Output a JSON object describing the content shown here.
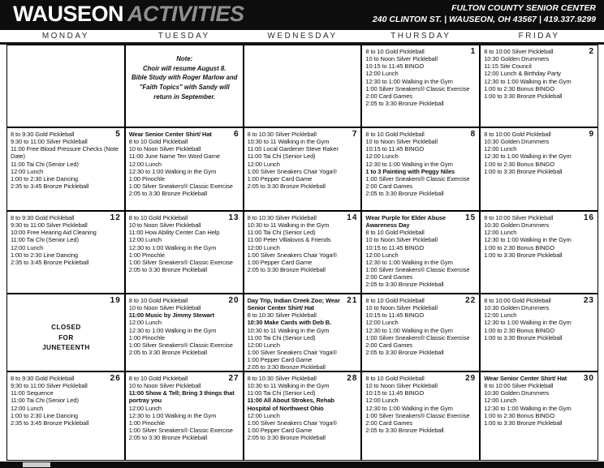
{
  "header": {
    "title_main": "WAUSEON",
    "title_accent": "ACTIVITIES",
    "org_name": "FULTON COUNTY SENIOR CENTER",
    "address_line": "240 CLINTON ST.  |  WAUSEON, OH 43567  |  419.337.9299"
  },
  "day_headers": [
    "MONDAY",
    "TUESDAY",
    "WEDNESDAY",
    "THURSDAY",
    "FRIDAY"
  ],
  "weeks": [
    [
      {
        "date": null
      },
      {
        "date": null,
        "note_lines": [
          "Note:",
          "Choir will resume August 8.",
          "Bible Study with Roger Marlow and",
          "\"Faith Topics\" with Sandy will",
          "return in September."
        ]
      },
      {
        "date": null
      },
      {
        "date": "1",
        "events": [
          {
            "text": "8 to 10 Gold Pickleball",
            "bold": false
          },
          {
            "text": "10 to Noon Silver Pickleball",
            "bold": false
          },
          {
            "text": "10:15 to 11:45 BINGO",
            "bold": false
          },
          {
            "text": "12:00 Lunch",
            "bold": false
          },
          {
            "text": "12:30 to 1:00 Walking in the Gym",
            "bold": false
          },
          {
            "text": "1:00 Silver Sneakers® Classic Exercise",
            "bold": false
          },
          {
            "text": "2:00 Card Games",
            "bold": false
          },
          {
            "text": "2:05 to 3:30 Bronze Pickleball",
            "bold": false
          }
        ]
      },
      {
        "date": "2",
        "events": [
          {
            "text": "8 to 10:00 Silver Pickleball",
            "bold": false
          },
          {
            "text": "10:30 Golden Drummers",
            "bold": false
          },
          {
            "text": "11:15 Site Council",
            "bold": false
          },
          {
            "text": "12:00 Lunch & Birthday Party",
            "bold": false
          },
          {
            "text": "12:30 to 1:00 Walking in the Gym",
            "bold": false
          },
          {
            "text": "1:00 to 2:30 Bonus BINGO",
            "bold": false
          },
          {
            "text": "1:00 to 3:30 Bronze Pickleball",
            "bold": false
          }
        ]
      }
    ],
    [
      {
        "date": "5",
        "events": [
          {
            "text": "8 to 9:30 Gold Pickleball",
            "bold": false
          },
          {
            "text": "9:30 to 11:00 Silver Pickleball",
            "bold": false
          },
          {
            "text": "11:00 Free Blood Pressure Checks (Note Date)",
            "bold": false
          },
          {
            "text": "11:00 Tai Chi (Senior Led)",
            "bold": false
          },
          {
            "text": "12:00 Lunch",
            "bold": false
          },
          {
            "text": "1:00 to 2:30 Line Dancing",
            "bold": false
          },
          {
            "text": "2:35 to 3:45 Bronze Pickleball",
            "bold": false
          }
        ]
      },
      {
        "date": "6",
        "events": [
          {
            "text": "Wear Senior Center Shirt/ Hat",
            "bold": true
          },
          {
            "text": "8 to 10 Gold Pickleball",
            "bold": false
          },
          {
            "text": "10 to Noon Silver Pickleball",
            "bold": false
          },
          {
            "text": "11:00 June Name Ten Word Game",
            "bold": false
          },
          {
            "text": "12:00 Lunch",
            "bold": false
          },
          {
            "text": "12:30 to 1:00 Walking in the Gym",
            "bold": false
          },
          {
            "text": "1:00 Pinochle",
            "bold": false
          },
          {
            "text": "1:00 Silver Sneakers® Classic Exercise",
            "bold": false
          },
          {
            "text": "2:05 to 3:30 Bronze Pickleball",
            "bold": false
          }
        ]
      },
      {
        "date": "7",
        "events": [
          {
            "text": "8 to 10:30 Silver Pickleball",
            "bold": false
          },
          {
            "text": "10:30 to 11 Walking in the Gym",
            "bold": false
          },
          {
            "text": "11:00 Local Gardener Steve Raker",
            "bold": false
          },
          {
            "text": "11:00 Tai Chi (Senior Led)",
            "bold": false
          },
          {
            "text": "12:00 Lunch",
            "bold": false
          },
          {
            "text": "1:00 Silver Sneakers Chair Yoga®",
            "bold": false
          },
          {
            "text": "1:00 Pepper Card Game",
            "bold": false
          },
          {
            "text": "2:05 to 3:30 Bronze Pickleball",
            "bold": false
          }
        ]
      },
      {
        "date": "8",
        "events": [
          {
            "text": "8 to 10 Gold Pickleball",
            "bold": false
          },
          {
            "text": "10 to Noon Silver Pickleball",
            "bold": false
          },
          {
            "text": "10:15 to 11:45 BINGO",
            "bold": false
          },
          {
            "text": "12:00 Lunch",
            "bold": false
          },
          {
            "text": "12:30 to 1:00 Walking in the Gym",
            "bold": false
          },
          {
            "text": "1 to 3 Painting with Peggy Niles",
            "bold": true
          },
          {
            "text": "1:00 Silver Sneakers® Classic Exercise",
            "bold": false
          },
          {
            "text": "2:00 Card Games",
            "bold": false
          },
          {
            "text": "2:05 to 3:30 Bronze Pickleball",
            "bold": false
          }
        ]
      },
      {
        "date": "9",
        "events": [
          {
            "text": "8 to 10:00 Gold Pickleball",
            "bold": false
          },
          {
            "text": "10:30 Golden Drummers",
            "bold": false
          },
          {
            "text": "12:00 Lunch",
            "bold": false
          },
          {
            "text": "12:30 to 1:00 Walking in the Gym",
            "bold": false
          },
          {
            "text": "1:00 to 2:30 Bonus BINGO",
            "bold": false
          },
          {
            "text": "1:00 to 3:30 Bronze Pickleball",
            "bold": false
          }
        ]
      }
    ],
    [
      {
        "date": "12",
        "events": [
          {
            "text": "8 to 9:30 Gold Pickleball",
            "bold": false
          },
          {
            "text": "9:30 to 11:00 Silver Pickleball",
            "bold": false
          },
          {
            "text": "10:00 Free Hearing Aid Cleaning",
            "bold": false
          },
          {
            "text": "11:00 Tai Chi (Senior Led)",
            "bold": false
          },
          {
            "text": "12:00 Lunch",
            "bold": false
          },
          {
            "text": "1:00 to 2:30 Line Dancing",
            "bold": false
          },
          {
            "text": "2:35 to 3:45 Bronze Pickleball",
            "bold": false
          }
        ]
      },
      {
        "date": "13",
        "events": [
          {
            "text": "8 to 10 Gold Pickleball",
            "bold": false
          },
          {
            "text": "10 to Noon Silver Pickleball",
            "bold": false
          },
          {
            "text": "11:00 How Ability Center Can Help",
            "bold": false
          },
          {
            "text": "12:00 Lunch",
            "bold": false
          },
          {
            "text": "12:30 to 1:00 Walking in the Gym",
            "bold": false
          },
          {
            "text": "1:00 Pinochle",
            "bold": false
          },
          {
            "text": "1:00 Silver Sneakers® Classic Exercise",
            "bold": false
          },
          {
            "text": "2:05 to 3:30 Bronze Pickleball",
            "bold": false
          }
        ]
      },
      {
        "date": "14",
        "events": [
          {
            "text": "8 to 10:30 Silver Pickleball",
            "bold": false
          },
          {
            "text": "10:30 to 11 Walking in the Gym",
            "bold": false
          },
          {
            "text": "11:00 Tai Chi (Senior Led)",
            "bold": false
          },
          {
            "text": "11:00 Peter Villalovos & Friends",
            "bold": false
          },
          {
            "text": "12:00 Lunch",
            "bold": false
          },
          {
            "text": "1:00 Silver Sneakers Chair Yoga®",
            "bold": false
          },
          {
            "text": "1:00 Pepper Card Game",
            "bold": false
          },
          {
            "text": "2:05 to 3:30 Bronze Pickleball",
            "bold": false
          }
        ]
      },
      {
        "date": "15",
        "events": [
          {
            "text": "Wear Purple for Elder Abuse Awareness Day",
            "bold": true
          },
          {
            "text": "8 to 10 Gold Pickleball",
            "bold": false
          },
          {
            "text": "10 to Noon Silver Pickleball",
            "bold": false
          },
          {
            "text": "10:15 to 11:45 BINGO",
            "bold": false
          },
          {
            "text": "12:00 Lunch",
            "bold": false
          },
          {
            "text": "12:30 to 1:00 Walking in the Gym",
            "bold": false
          },
          {
            "text": "1:00 Silver Sneakers® Classic Exercise",
            "bold": false
          },
          {
            "text": "2:00 Card Games",
            "bold": false
          },
          {
            "text": "2:05 to 3:30 Bronze Pickleball",
            "bold": false
          }
        ]
      },
      {
        "date": "16",
        "events": [
          {
            "text": "8 to 10:00 Silver Pickleball",
            "bold": false
          },
          {
            "text": "10:30 Golden Drummers",
            "bold": false
          },
          {
            "text": "12:00 Lunch",
            "bold": false
          },
          {
            "text": "12:30 to 1:00 Walking in the Gym",
            "bold": false
          },
          {
            "text": "1:00 to 2:30 Bonus BINGO",
            "bold": false
          },
          {
            "text": "1:00 to 3:30 Bronze Pickleball",
            "bold": false
          }
        ]
      }
    ],
    [
      {
        "date": "19",
        "closed_lines": [
          "CLOSED",
          "FOR",
          "JUNETEENTH"
        ]
      },
      {
        "date": "20",
        "events": [
          {
            "text": "8 to 10 Gold Pickleball",
            "bold": false
          },
          {
            "text": "10 to Noon Silver Pickleball",
            "bold": false
          },
          {
            "text": "11:00 Music by Jimmy Stewart",
            "bold": true
          },
          {
            "text": "12:00 Lunch",
            "bold": false
          },
          {
            "text": "12:30 to 1:00 Walking in the Gym",
            "bold": false
          },
          {
            "text": "1:00 Pinochle",
            "bold": false
          },
          {
            "text": "1:00 Silver Sneakers® Classic Exercise",
            "bold": false
          },
          {
            "text": "2:05 to 3:30 Bronze Pickleball",
            "bold": false
          }
        ]
      },
      {
        "date": "21",
        "events": [
          {
            "text": "Day Trip, Indian Creek Zoo; Wear Senior Center Shirt/ Hat",
            "bold": true
          },
          {
            "text": "8 to 10:30 Silver Pickleball",
            "bold": false
          },
          {
            "text": "10:30 Make Cards with Deb B.",
            "bold": true
          },
          {
            "text": "10:30 to 11 Walking in the Gym",
            "bold": false
          },
          {
            "text": "11:00 Tai Chi (Senior Led)",
            "bold": false
          },
          {
            "text": "12:00 Lunch",
            "bold": false
          },
          {
            "text": "1:00 Silver Sneakers Chair Yoga®",
            "bold": false
          },
          {
            "text": "1:00 Pepper Card Game",
            "bold": false
          },
          {
            "text": "2:05 to 3:30 Bronze Pickleball",
            "bold": false
          }
        ]
      },
      {
        "date": "22",
        "events": [
          {
            "text": "8 to 10 Gold Pickleball",
            "bold": false
          },
          {
            "text": "10 to Noon Silver Pickleball",
            "bold": false
          },
          {
            "text": "10:15 to 11:45 BINGO",
            "bold": false
          },
          {
            "text": "12:00 Lunch",
            "bold": false
          },
          {
            "text": "12:30 to 1:00 Walking in the Gym",
            "bold": false
          },
          {
            "text": "1:00 Silver Sneakers® Classic Exercise",
            "bold": false
          },
          {
            "text": "2:00 Card Games",
            "bold": false
          },
          {
            "text": "2:05 to 3:30 Bronze Pickleball",
            "bold": false
          }
        ]
      },
      {
        "date": "23",
        "events": [
          {
            "text": "8 to 10:00 Gold Pickleball",
            "bold": false
          },
          {
            "text": "10:30 Golden Drummers",
            "bold": false
          },
          {
            "text": "12:00 Lunch",
            "bold": false
          },
          {
            "text": "12:30 to 1:00 Walking in the Gym",
            "bold": false
          },
          {
            "text": "1:00 to 2:30 Bonus BINGO",
            "bold": false
          },
          {
            "text": "1:00 to 3:30 Bronze Pickleball",
            "bold": false
          }
        ]
      }
    ],
    [
      {
        "date": "26",
        "events": [
          {
            "text": "8 to 9:30 Gold Pickleball",
            "bold": false
          },
          {
            "text": "9:30 to 11:00 Silver Pickleball",
            "bold": false
          },
          {
            "text": "11:00 Sequence",
            "bold": false
          },
          {
            "text": "11:00 Tai Chi (Senior Led)",
            "bold": false
          },
          {
            "text": "12:00 Lunch",
            "bold": false
          },
          {
            "text": "1:00 to 2:30 Line Dancing",
            "bold": false
          },
          {
            "text": "2:35 to 3:45 Bronze Pickleball",
            "bold": false
          }
        ]
      },
      {
        "date": "27",
        "events": [
          {
            "text": "8 to 10 Gold Pickleball",
            "bold": false
          },
          {
            "text": "10 to Noon Silver Pickleball",
            "bold": false
          },
          {
            "text": "11:00 Show & Tell; Bring 3 things that portray you",
            "bold": true
          },
          {
            "text": "12:00 Lunch",
            "bold": false
          },
          {
            "text": "12:30 to 1:00 Walking in the Gym",
            "bold": false
          },
          {
            "text": "1:00 Pinochle",
            "bold": false
          },
          {
            "text": "1:00 Silver Sneakers® Classic Exercise",
            "bold": false
          },
          {
            "text": "2:05 to 3:30 Bronze Pickleball",
            "bold": false
          }
        ]
      },
      {
        "date": "28",
        "events": [
          {
            "text": "8 to 10:30 Silver Pickleball",
            "bold": false
          },
          {
            "text": "10:30 to 11 Walking in the Gym",
            "bold": false
          },
          {
            "text": "11:00 Tai Chi (Senior Led)",
            "bold": false
          },
          {
            "text": "11:00 All About Strokes, Rehab Hospital of Northwest Ohio",
            "bold": true
          },
          {
            "text": "12:00 Lunch",
            "bold": false
          },
          {
            "text": "1:00 Silver Sneakers Chair Yoga®",
            "bold": false
          },
          {
            "text": "1:00 Pepper Card Game",
            "bold": false
          },
          {
            "text": "2:05 to 3:30 Bronze Pickleball",
            "bold": false
          }
        ]
      },
      {
        "date": "29",
        "events": [
          {
            "text": "8 to 10 Gold Pickleball",
            "bold": false
          },
          {
            "text": "10 to Noon Silver Pickleball",
            "bold": false
          },
          {
            "text": "10:15 to 11:45 BINGO",
            "bold": false
          },
          {
            "text": "12:00 Lunch",
            "bold": false
          },
          {
            "text": "12:30 to 1:00 Walking in the Gym",
            "bold": false
          },
          {
            "text": "1:00 Silver Sneakers® Classic Exercise",
            "bold": false
          },
          {
            "text": "2:00 Card Games",
            "bold": false
          },
          {
            "text": "2:05 to 3:30 Bronze Pickleball",
            "bold": false
          }
        ]
      },
      {
        "date": "30",
        "events": [
          {
            "text": "Wear Senior Center Shirt/ Hat",
            "bold": true
          },
          {
            "text": "8 to 10:00 Silver Pickleball",
            "bold": false
          },
          {
            "text": "10:30 Golden Drummers",
            "bold": false
          },
          {
            "text": "12:00 Lunch",
            "bold": false
          },
          {
            "text": "12:30 to 1:00 Walking in the Gym",
            "bold": false
          },
          {
            "text": "1:00 to 2:30 Bonus BINGO",
            "bold": false
          },
          {
            "text": "1:00 to 3:30 Bronze Pickleball",
            "bold": false
          }
        ]
      }
    ]
  ]
}
